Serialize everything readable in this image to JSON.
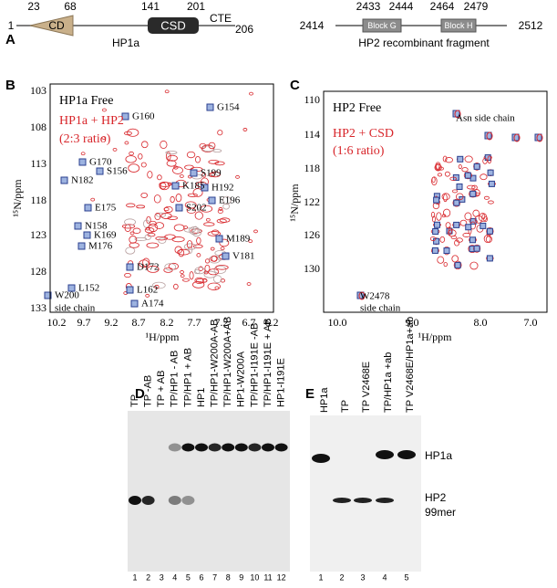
{
  "panel_a": {
    "label": "A",
    "hp1a": {
      "start": "1",
      "end": "206",
      "positions": [
        "23",
        "68",
        "141",
        "201"
      ],
      "cd": "CD",
      "csd": "CSD",
      "cte": "CTE",
      "name": "HP1a"
    },
    "hp2": {
      "start": "2414",
      "end": "2512",
      "positions": [
        "2433",
        "2444",
        "2464",
        "2479"
      ],
      "block_g": "Block G",
      "block_h": "Block H",
      "name": "HP2 recombinant fragment"
    }
  },
  "panel_b": {
    "label": "B",
    "legend": [
      "HP1a Free",
      "HP1a + HP2",
      "(2:3 ratio)"
    ],
    "y_label": "¹⁵N/ppm",
    "x_label": "¹H/ppm",
    "yticks": [
      "103",
      "108",
      "113",
      "118",
      "123",
      "128",
      "133"
    ],
    "xticks": [
      "10.2",
      "9.7",
      "9.2",
      "8.7",
      "8.2",
      "7.7",
      "7.2",
      "6.7",
      "6.2"
    ],
    "peaks": [
      "G154",
      "G160",
      "G170",
      "S156",
      "N182",
      "S199",
      "K185",
      "H192",
      "E196",
      "E175",
      "S202",
      "M189",
      "N158",
      "K169",
      "V181",
      "M176",
      "D172",
      "L152",
      "L162",
      "A174",
      "W200"
    ],
    "side_chain": "side chain"
  },
  "panel_c": {
    "label": "C",
    "legend": [
      "HP2 Free",
      "HP2 + CSD",
      "(1:6 ratio)"
    ],
    "annotation": "Asn side chain",
    "peak": "W2478",
    "peak_note": "side chain",
    "y_label": "¹⁵N/ppm",
    "x_label": "¹H/ppm",
    "yticks": [
      "110",
      "114",
      "118",
      "122",
      "126",
      "130"
    ],
    "xticks": [
      "10.0",
      "9.0",
      "8.0",
      "7.0"
    ]
  },
  "panel_d": {
    "label": "D",
    "lanes": [
      "TP",
      "TP -AB",
      "TP + AB",
      "TP/HP1 - AB",
      "TP/HP1 + AB",
      "HP1",
      "TP/HP1-W200A-AB",
      "TP/HP1-W200A+AB",
      "HP1-W200A",
      "TP/HP1-I191E -AB",
      "TP/HP1-I191E + AB",
      "HP1-I191E"
    ],
    "lane_numbers": [
      "1",
      "2",
      "3",
      "4",
      "5",
      "6",
      "7",
      "8",
      "9",
      "10",
      "11",
      "12"
    ]
  },
  "panel_e": {
    "label": "E",
    "lanes": [
      "HP1a",
      "TP",
      "TP V2468E",
      "TP/HP1a +ab",
      "TP V2468E/HP1a+ab"
    ],
    "lane_numbers": [
      "1",
      "2",
      "3",
      "4",
      "5"
    ],
    "bands": [
      "HP1a",
      "HP2",
      "99mer"
    ]
  }
}
